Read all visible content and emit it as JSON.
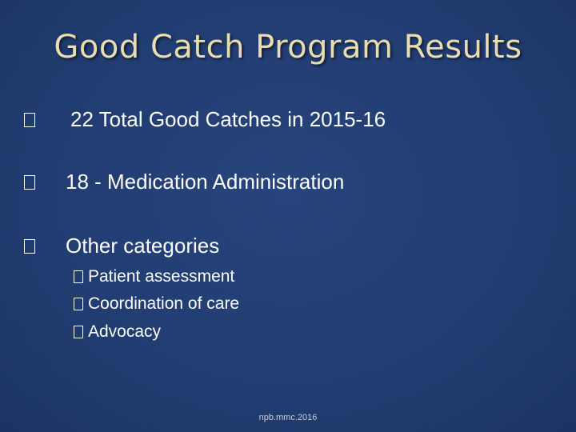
{
  "slide": {
    "title": "Good Catch Program Results",
    "bullets": [
      "22 Total Good Catches  in 2015-16",
      "18  - Medication Administration",
      "Other categories"
    ],
    "sub_bullets": [
      "Patient assessment",
      "Coordination of care",
      "Advocacy"
    ],
    "footer": "npb.mmc.2016"
  }
}
